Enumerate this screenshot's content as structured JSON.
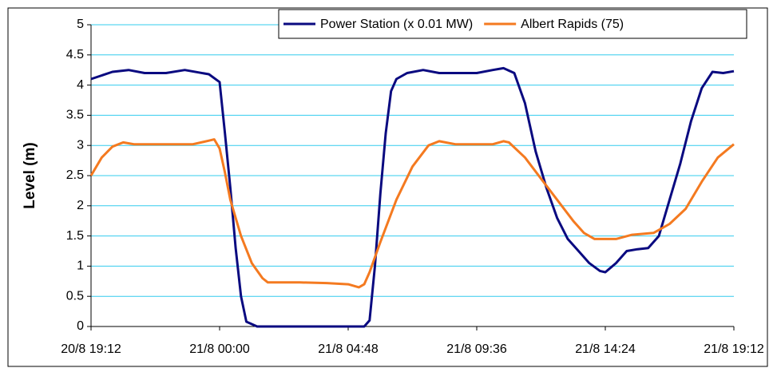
{
  "chart_data": {
    "type": "line",
    "y_label": "Level (m)",
    "ylim": [
      0,
      5
    ],
    "yticks": [
      0,
      0.5,
      1,
      1.5,
      2,
      2.5,
      3,
      3.5,
      4,
      4.5,
      5
    ],
    "xlim": [
      "20/8 19:12",
      "21/8 19:12"
    ],
    "xticks": [
      "20/8 19:12",
      "21/8 00:00",
      "21/8 04:48",
      "21/8 09:36",
      "21/8 14:24",
      "21/8 19:12"
    ],
    "grid": true,
    "legend": "top-right",
    "series": [
      {
        "name": "Power Station (x 0.01 MW)",
        "color": "#0a0a80",
        "x": [
          "20/8 19:12",
          "20/8 20:00",
          "20/8 20:36",
          "20/8 21:12",
          "20/8 22:00",
          "20/8 22:42",
          "20/8 23:36",
          "21/8 00:00",
          "21/8 00:12",
          "21/8 00:24",
          "21/8 00:36",
          "21/8 00:48",
          "21/8 01:00",
          "21/8 01:24",
          "21/8 04:48",
          "21/8 05:24",
          "21/8 05:36",
          "21/8 05:48",
          "21/8 06:00",
          "21/8 06:12",
          "21/8 06:24",
          "21/8 06:36",
          "21/8 07:00",
          "21/8 07:36",
          "21/8 08:12",
          "21/8 09:36",
          "21/8 10:12",
          "21/8 10:36",
          "21/8 11:00",
          "21/8 11:24",
          "21/8 11:48",
          "21/8 12:12",
          "21/8 12:36",
          "21/8 13:00",
          "21/8 13:24",
          "21/8 13:48",
          "21/8 14:12",
          "21/8 14:24",
          "21/8 14:48",
          "21/8 15:12",
          "21/8 15:36",
          "21/8 16:00",
          "21/8 16:24",
          "21/8 16:48",
          "21/8 17:12",
          "21/8 17:36",
          "21/8 18:00",
          "21/8 18:24",
          "21/8 18:48",
          "21/8 19:12"
        ],
        "values": [
          4.1,
          4.22,
          4.25,
          4.2,
          4.2,
          4.25,
          4.18,
          4.05,
          3.2,
          2.3,
          1.3,
          0.5,
          0.08,
          0,
          0,
          0,
          0.1,
          1,
          2.2,
          3.2,
          3.9,
          4.1,
          4.2,
          4.25,
          4.2,
          4.2,
          4.25,
          4.28,
          4.2,
          3.7,
          2.9,
          2.3,
          1.8,
          1.45,
          1.25,
          1.05,
          0.92,
          0.9,
          1.05,
          1.25,
          1.28,
          1.3,
          1.5,
          2.1,
          2.7,
          3.4,
          3.95,
          4.22,
          4.2,
          4.23
        ]
      },
      {
        "name": "Albert Rapids (75)",
        "color": "#f47a20",
        "x": [
          "20/8 19:12",
          "20/8 19:36",
          "20/8 20:00",
          "20/8 20:24",
          "20/8 20:48",
          "20/8 22:00",
          "20/8 23:00",
          "20/8 23:36",
          "20/8 23:48",
          "21/8 00:00",
          "21/8 00:12",
          "21/8 00:24",
          "21/8 00:48",
          "21/8 01:12",
          "21/8 01:36",
          "21/8 01:48",
          "21/8 03:00",
          "21/8 04:00",
          "21/8 04:48",
          "21/8 05:12",
          "21/8 05:24",
          "21/8 05:36",
          "21/8 06:00",
          "21/8 06:36",
          "21/8 07:12",
          "21/8 07:48",
          "21/8 08:12",
          "21/8 08:48",
          "21/8 10:12",
          "21/8 10:36",
          "21/8 10:48",
          "21/8 11:24",
          "21/8 12:00",
          "21/8 12:36",
          "21/8 13:12",
          "21/8 13:36",
          "21/8 14:00",
          "21/8 14:48",
          "21/8 15:24",
          "21/8 16:12",
          "21/8 16:48",
          "21/8 17:24",
          "21/8 18:00",
          "21/8 18:36",
          "21/8 19:12"
        ],
        "values": [
          2.5,
          2.8,
          2.98,
          3.05,
          3.02,
          3.02,
          3.02,
          3.08,
          3.1,
          2.95,
          2.55,
          2.1,
          1.5,
          1.05,
          0.8,
          0.73,
          0.73,
          0.72,
          0.7,
          0.65,
          0.7,
          0.9,
          1.4,
          2.1,
          2.65,
          3,
          3.07,
          3.02,
          3.02,
          3.07,
          3.05,
          2.8,
          2.45,
          2.1,
          1.75,
          1.55,
          1.45,
          1.45,
          1.52,
          1.55,
          1.7,
          1.95,
          2.4,
          2.8,
          3.02
        ]
      }
    ]
  }
}
